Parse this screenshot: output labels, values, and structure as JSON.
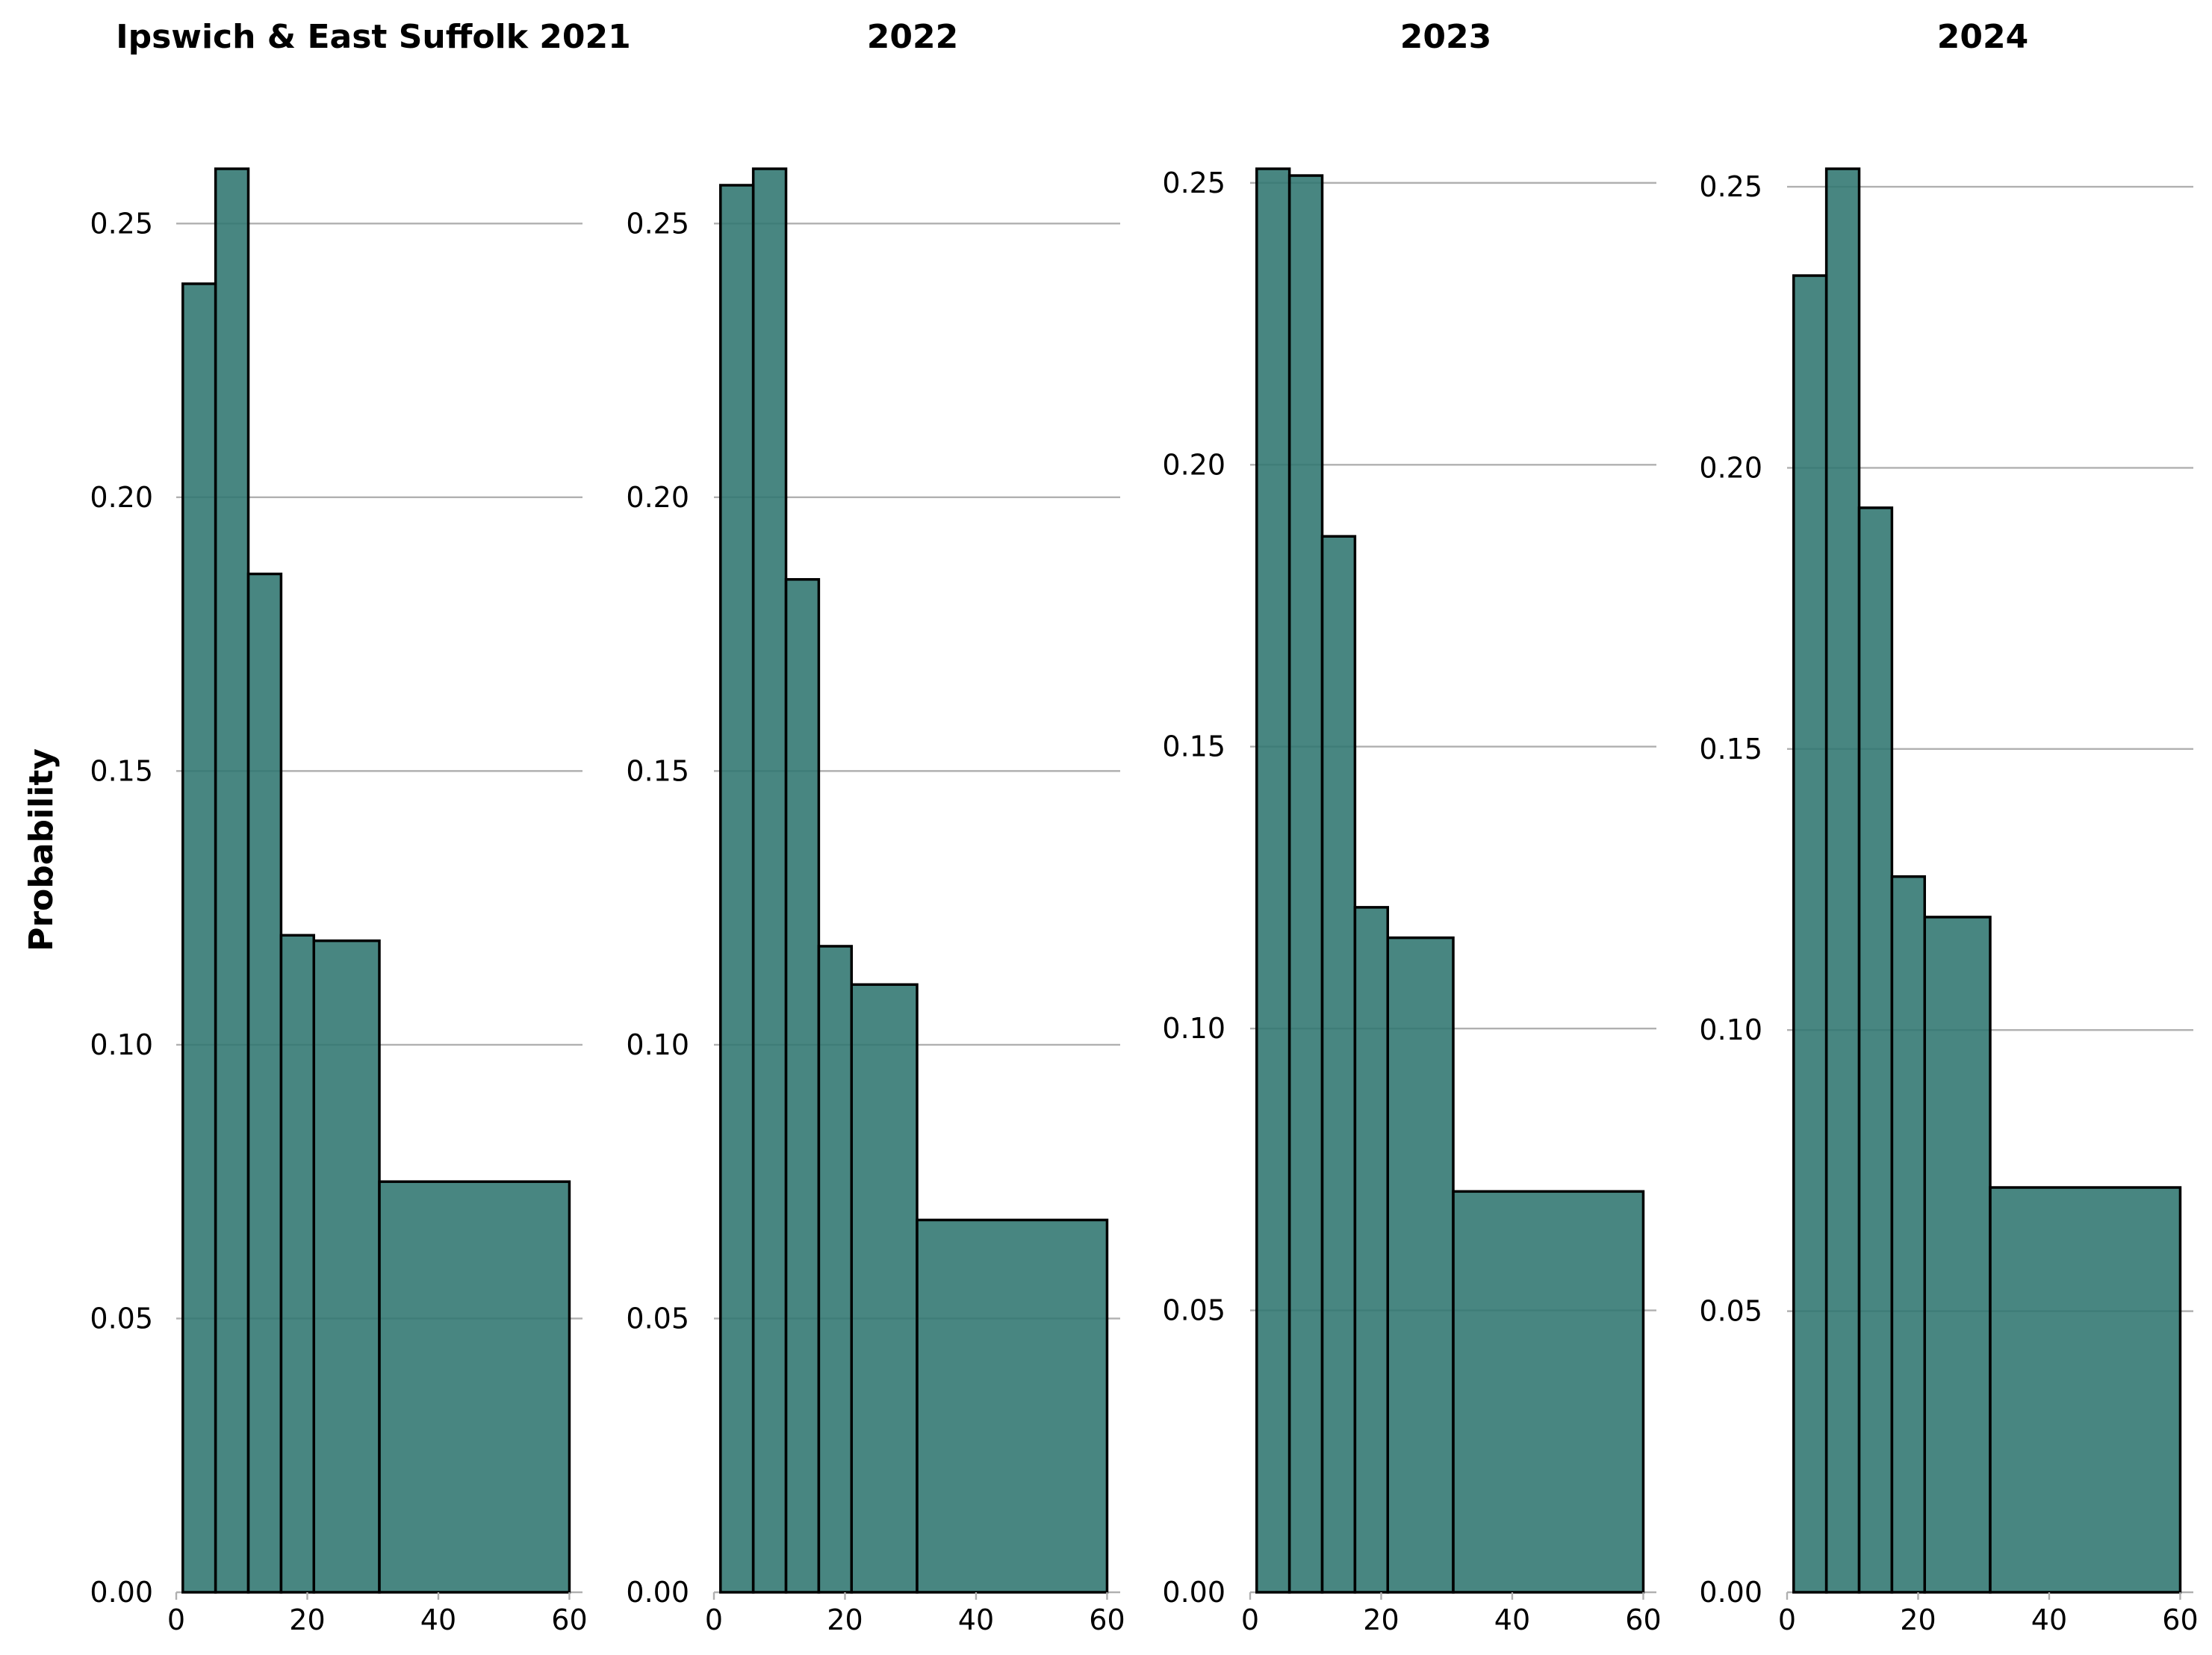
{
  "chart_data": [
    {
      "type": "bar",
      "title": "Ipswich & East Suffolk 2021",
      "ylabel": "Probability",
      "xlabel": "",
      "bin_edges": [
        1,
        6,
        11,
        16,
        21,
        31,
        60
      ],
      "values": [
        0.239,
        0.26,
        0.186,
        0.12,
        0.119,
        0.075
      ],
      "xlim": [
        0,
        62
      ],
      "ylim": [
        0,
        0.26
      ],
      "xticks": [
        0,
        20,
        40,
        60
      ],
      "xtick_labels": [
        "0",
        "20",
        "40",
        "60"
      ],
      "yticks": [
        0,
        0.05,
        0.1,
        0.15,
        0.2,
        0.25
      ],
      "ytick_labels": [
        "0.00",
        "0.05",
        "0.10",
        "0.15",
        "0.20",
        "0.25"
      ],
      "grid": "horizontal"
    },
    {
      "type": "bar",
      "title": "2022",
      "bin_edges": [
        1,
        6,
        11,
        16,
        21,
        31,
        60
      ],
      "values": [
        0.257,
        0.26,
        0.185,
        0.118,
        0.111,
        0.068
      ],
      "xlim": [
        0,
        62
      ],
      "ylim": [
        0,
        0.26
      ],
      "xticks": [
        0,
        20,
        40,
        60
      ],
      "xtick_labels": [
        "0",
        "20",
        "40",
        "60"
      ],
      "yticks": [
        0,
        0.05,
        0.1,
        0.15,
        0.2,
        0.25
      ],
      "ytick_labels": [
        "0.00",
        "0.05",
        "0.10",
        "0.15",
        "0.20",
        "0.25"
      ],
      "grid": "horizontal"
    },
    {
      "type": "bar",
      "title": "2023",
      "bin_edges": [
        1,
        6,
        11,
        16,
        21,
        31,
        60
      ],
      "values": [
        0.2525,
        0.2513,
        0.1873,
        0.1215,
        0.1161,
        0.0711
      ],
      "xlim": [
        0,
        62
      ],
      "ylim": [
        0,
        0.2525
      ],
      "xticks": [
        0,
        20,
        40,
        60
      ],
      "xtick_labels": [
        "0",
        "20",
        "40",
        "60"
      ],
      "yticks": [
        0,
        0.05,
        0.1,
        0.15,
        0.2,
        0.25
      ],
      "ytick_labels": [
        "0.00",
        "0.05",
        "0.10",
        "0.15",
        "0.20",
        "0.25"
      ],
      "grid": "horizontal"
    },
    {
      "type": "bar",
      "title": "2024",
      "bin_edges": [
        1,
        6,
        11,
        16,
        21,
        31,
        60
      ],
      "values": [
        0.2342,
        0.2532,
        0.1929,
        0.1273,
        0.1201,
        0.072
      ],
      "xlim": [
        0,
        62
      ],
      "ylim": [
        0,
        0.2532
      ],
      "xticks": [
        0,
        20,
        40,
        60
      ],
      "xtick_labels": [
        "0",
        "20",
        "40",
        "60"
      ],
      "yticks": [
        0,
        0.05,
        0.1,
        0.15,
        0.2,
        0.25
      ],
      "ytick_labels": [
        "0.00",
        "0.05",
        "0.10",
        "0.15",
        "0.20",
        "0.25"
      ],
      "grid": "horizontal"
    }
  ],
  "colors": {
    "bar_fill": "#2f756f",
    "bar_edge": "#000000",
    "grid": "#b0b0b0"
  }
}
